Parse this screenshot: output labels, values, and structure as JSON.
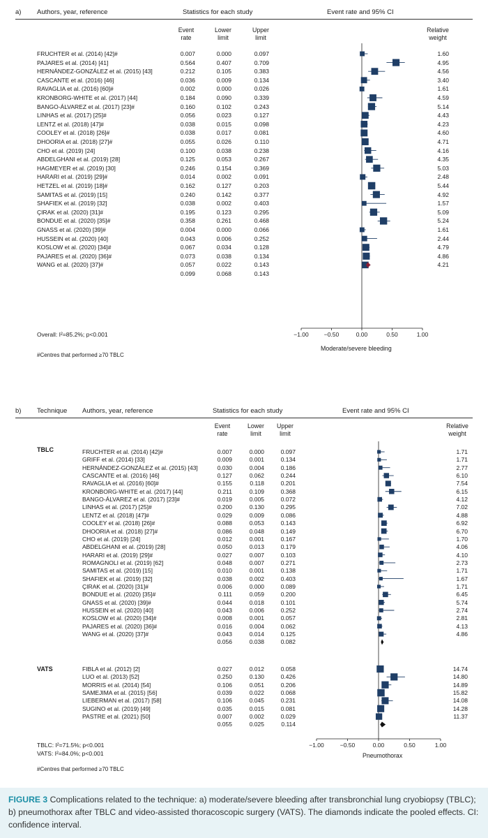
{
  "colors": {
    "marker": "#1f3e66",
    "diamond_a": "#8b1e33",
    "diamond_b": "#111111",
    "caption_bg": "#e8f3f6",
    "caption_label": "#1b8fa6"
  },
  "panel_a": {
    "label": "a)",
    "header_authors": "Authors, year, reference",
    "header_stats": "Statistics for each study",
    "header_plot": "Event rate and 95% CI",
    "col_event": "Event rate",
    "col_lower": "Lower limit",
    "col_upper": "Upper limit",
    "col_weight": "Relative weight",
    "overall_label": "Overall: I²=85.2%; p<0.001",
    "footnote": "#Centres that performed ≥70 TBLC"
  },
  "panel_b": {
    "label": "b)",
    "header_technique": "Technique",
    "header_authors": "Authors, year, reference",
    "header_stats": "Statistics for each study",
    "header_plot": "Event rate and 95% CI",
    "col_event": "Event rate",
    "col_lower": "Lower limit",
    "col_upper": "Upper limit",
    "col_weight": "Relative weight",
    "group_tblc": "TBLC",
    "group_vats": "VATS",
    "tblc_het": "TBLC: I²=71.5%; p<0.001",
    "vats_het": "VATS: I²=84.0%; p<0.001",
    "footnote": "#Centres that performed ≥70 TBLC"
  },
  "caption": {
    "figure_label": "FIGURE 3",
    "text": " Complications related to the technique: a) moderate/severe bleeding after transbronchial lung cryobiopsy (TBLC); b) pneumothorax after TBLC and video-assisted thoracoscopic surgery (VATS). The diamonds indicate the pooled effects. CI: confidence interval."
  },
  "chart_data": [
    {
      "type": "forest",
      "title": "Event rate and 95% CI",
      "xlabel": "Moderate/severe bleeding",
      "xlim": [
        -1.0,
        1.0
      ],
      "xticks": [
        "−1.00",
        "−0.50",
        "0.00",
        "0.50",
        "1.00"
      ],
      "xtick_values": [
        -1.0,
        -0.5,
        0.0,
        0.5,
        1.0
      ],
      "studies": [
        {
          "label": "FRUCHTER et al. (2014) [42]#",
          "rate": "0.007",
          "lower": "0.000",
          "upper": "0.097",
          "weight": "1.60"
        },
        {
          "label": "PAJARES et al. (2014) [41]",
          "rate": "0.564",
          "lower": "0.407",
          "upper": "0.709",
          "weight": "4.95"
        },
        {
          "label": "HERNÁNDEZ-GONZÁLEZ et al. (2015) [43]",
          "rate": "0.212",
          "lower": "0.105",
          "upper": "0.383",
          "weight": "4.56"
        },
        {
          "label": "CASCANTE et al. (2016) [46]",
          "rate": "0.036",
          "lower": "0.009",
          "upper": "0.134",
          "weight": "3.40"
        },
        {
          "label": "RAVAGLIA et al. (2016) [60]#",
          "rate": "0.002",
          "lower": "0.000",
          "upper": "0.026",
          "weight": "1.61"
        },
        {
          "label": "KRONBORG-WHITE et al. (2017) [44]",
          "rate": "0.184",
          "lower": "0.090",
          "upper": "0.339",
          "weight": "4.59"
        },
        {
          "label": "BANGO-ÁLVAREZ et al. (2017) [23]#",
          "rate": "0.160",
          "lower": "0.102",
          "upper": "0.243",
          "weight": "5.14"
        },
        {
          "label": "LINHAS et al. (2017) [25]#",
          "rate": "0.056",
          "lower": "0.023",
          "upper": "0.127",
          "weight": "4.43"
        },
        {
          "label": "LENTZ et al. (2018) [47]#",
          "rate": "0.038",
          "lower": "0.015",
          "upper": "0.098",
          "weight": "4.23"
        },
        {
          "label": "COOLEY et al. (2018) [26]#",
          "rate": "0.038",
          "lower": "0.017",
          "upper": "0.081",
          "weight": "4.60"
        },
        {
          "label": "DHOORIA et al. (2018) [27]#",
          "rate": "0.055",
          "lower": "0.026",
          "upper": "0.110",
          "weight": "4.71"
        },
        {
          "label": "CHO et al. (2019) [24]",
          "rate": "0.100",
          "lower": "0.038",
          "upper": "0.238",
          "weight": "4.16"
        },
        {
          "label": "ABDELGHANI et al. (2019) [28]",
          "rate": "0.125",
          "lower": "0.053",
          "upper": "0.267",
          "weight": "4.35"
        },
        {
          "label": "HAGMEYER et al. (2019) [30]",
          "rate": "0.246",
          "lower": "0.154",
          "upper": "0.369",
          "weight": "5.03"
        },
        {
          "label": "HARARI et al. (2019) [29]#",
          "rate": "0.014",
          "lower": "0.002",
          "upper": "0.091",
          "weight": "2.48"
        },
        {
          "label": "HETZEL et al. (2019) [18]#",
          "rate": "0.162",
          "lower": "0.127",
          "upper": "0.203",
          "weight": "5.44"
        },
        {
          "label": "SAMITAS et al. (2019) [15]",
          "rate": "0.240",
          "lower": "0.142",
          "upper": "0.377",
          "weight": "4.92"
        },
        {
          "label": "SHAFIEK et al. (2019) [32]",
          "rate": "0.038",
          "lower": "0.002",
          "upper": "0.403",
          "weight": "1.57"
        },
        {
          "label": "ÇIRAK et al. (2020) [31]#",
          "rate": "0.195",
          "lower": "0.123",
          "upper": "0.295",
          "weight": "5.09"
        },
        {
          "label": "BONDUE et al. (2020) [35]#",
          "rate": "0.358",
          "lower": "0.261",
          "upper": "0.468",
          "weight": "5.24"
        },
        {
          "label": "GNASS et al. (2020) [39]#",
          "rate": "0.004",
          "lower": "0.000",
          "upper": "0.066",
          "weight": "1.61"
        },
        {
          "label": "HUSSEIN et al. (2020) [40]",
          "rate": "0.043",
          "lower": "0.006",
          "upper": "0.252",
          "weight": "2.44"
        },
        {
          "label": "KOSLOW et al. (2020) [34]#",
          "rate": "0.067",
          "lower": "0.034",
          "upper": "0.128",
          "weight": "4.79"
        },
        {
          "label": "PAJARES et al. (2020) [36]#",
          "rate": "0.073",
          "lower": "0.038",
          "upper": "0.134",
          "weight": "4.86"
        },
        {
          "label": "WANG et al. (2020) [37]#",
          "rate": "0.057",
          "lower": "0.022",
          "upper": "0.143",
          "weight": "4.21"
        }
      ],
      "pooled": {
        "rate": "0.099",
        "lower": "0.068",
        "upper": "0.143"
      }
    },
    {
      "type": "forest",
      "title": "Event rate and 95% CI",
      "xlabel": "Pneumothorax",
      "xlim": [
        -1.0,
        1.0
      ],
      "xticks": [
        "−1.00",
        "−0.50",
        "0.00",
        "0.50",
        "1.00"
      ],
      "xtick_values": [
        -1.0,
        -0.5,
        0.0,
        0.5,
        1.0
      ],
      "groups": [
        {
          "name": "TBLC",
          "studies": [
            {
              "label": "FRUCHTER et al. (2014) [42]#",
              "rate": "0.007",
              "lower": "0.000",
              "upper": "0.097",
              "weight": "1.71"
            },
            {
              "label": "GRIFF et al. (2014) [33]",
              "rate": "0.009",
              "lower": "0.001",
              "upper": "0.134",
              "weight": "1.71"
            },
            {
              "label": "HERNÁNDEZ-GONZÁLEZ et al. (2015) [43]",
              "rate": "0.030",
              "lower": "0.004",
              "upper": "0.186",
              "weight": "2.77"
            },
            {
              "label": "CASCANTE et al. (2016) [46]",
              "rate": "0.127",
              "lower": "0.062",
              "upper": "0.244",
              "weight": "6.10"
            },
            {
              "label": "RAVAGLIA et al. (2016) [60]#",
              "rate": "0.155",
              "lower": "0.118",
              "upper": "0.201",
              "weight": "7.54"
            },
            {
              "label": "KRONBORG-WHITE et al. (2017) [44]",
              "rate": "0.211",
              "lower": "0.109",
              "upper": "0.368",
              "weight": "6.15"
            },
            {
              "label": "BANGO-ÁLVAREZ et al. (2017) [23]#",
              "rate": "0.019",
              "lower": "0.005",
              "upper": "0.072",
              "weight": "4.12"
            },
            {
              "label": "LINHAS et al. (2017) [25]#",
              "rate": "0.200",
              "lower": "0.130",
              "upper": "0.295",
              "weight": "7.02"
            },
            {
              "label": "LENTZ et al. (2018) [47]#",
              "rate": "0.029",
              "lower": "0.009",
              "upper": "0.086",
              "weight": "4.88"
            },
            {
              "label": "COOLEY et al. (2018) [26]#",
              "rate": "0.088",
              "lower": "0.053",
              "upper": "0.143",
              "weight": "6.92"
            },
            {
              "label": "DHOORIA et al. (2018) [27]#",
              "rate": "0.086",
              "lower": "0.048",
              "upper": "0.149",
              "weight": "6.70"
            },
            {
              "label": "CHO et al. (2019) [24]",
              "rate": "0.012",
              "lower": "0.001",
              "upper": "0.167",
              "weight": "1.70"
            },
            {
              "label": "ABDELGHANI et al. (2019) [28]",
              "rate": "0.050",
              "lower": "0.013",
              "upper": "0.179",
              "weight": "4.06"
            },
            {
              "label": "HARARI et al. (2019) [29]#",
              "rate": "0.027",
              "lower": "0.007",
              "upper": "0.103",
              "weight": "4.10"
            },
            {
              "label": "ROMAGNOLI et al. (2019) [62]",
              "rate": "0.048",
              "lower": "0.007",
              "upper": "0.271",
              "weight": "2.73"
            },
            {
              "label": "SAMITAS et al. (2019) [15]",
              "rate": "0.010",
              "lower": "0.001",
              "upper": "0.138",
              "weight": "1.71"
            },
            {
              "label": "SHAFIEK et al. (2019) [32]",
              "rate": "0.038",
              "lower": "0.002",
              "upper": "0.403",
              "weight": "1.67"
            },
            {
              "label": "ÇIRAK et al. (2020) [31]#",
              "rate": "0.006",
              "lower": "0.000",
              "upper": "0.089",
              "weight": "1.71"
            },
            {
              "label": "BONDUE et al. (2020) [35]#",
              "rate": "0.111",
              "lower": "0.059",
              "upper": "0.200",
              "weight": "6.45"
            },
            {
              "label": "GNASS et al. (2020) [39]#",
              "rate": "0.044",
              "lower": "0.018",
              "upper": "0.101",
              "weight": "5.74"
            },
            {
              "label": "HUSSEIN et al. (2020) [40]",
              "rate": "0.043",
              "lower": "0.006",
              "upper": "0.252",
              "weight": "2.74"
            },
            {
              "label": "KOSLOW et al. (2020) [34]#",
              "rate": "0.008",
              "lower": "0.001",
              "upper": "0.057",
              "weight": "2.81"
            },
            {
              "label": "PAJARES et al. (2020) [36]#",
              "rate": "0.016",
              "lower": "0.004",
              "upper": "0.062",
              "weight": "4.13"
            },
            {
              "label": "WANG et al. (2020) [37]#",
              "rate": "0.043",
              "lower": "0.014",
              "upper": "0.125",
              "weight": "4.86"
            }
          ],
          "pooled": {
            "rate": "0.056",
            "lower": "0.038",
            "upper": "0.082"
          }
        },
        {
          "name": "VATS",
          "studies": [
            {
              "label": "FIBLA et al. (2012) [2]",
              "rate": "0.027",
              "lower": "0.012",
              "upper": "0.058",
              "weight": "14.74"
            },
            {
              "label": "LUO et al. (2013) [52]",
              "rate": "0.250",
              "lower": "0.130",
              "upper": "0.426",
              "weight": "14.80"
            },
            {
              "label": "MORRIS et al. (2014) [54]",
              "rate": "0.106",
              "lower": "0.051",
              "upper": "0.206",
              "weight": "14.89"
            },
            {
              "label": "SAMEJIMA et al. (2015) [56]",
              "rate": "0.039",
              "lower": "0.022",
              "upper": "0.068",
              "weight": "15.82"
            },
            {
              "label": "LIEBERMAN et al. (2017) [58]",
              "rate": "0.106",
              "lower": "0.045",
              "upper": "0.231",
              "weight": "14.08"
            },
            {
              "label": "SUGINO et al. (2019) [49]",
              "rate": "0.035",
              "lower": "0.015",
              "upper": "0.081",
              "weight": "14.28"
            },
            {
              "label": "PASTRE et al. (2021) [50]",
              "rate": "0.007",
              "lower": "0.002",
              "upper": "0.029",
              "weight": "11.37"
            }
          ],
          "pooled": {
            "rate": "0.055",
            "lower": "0.025",
            "upper": "0.114"
          }
        }
      ]
    }
  ]
}
